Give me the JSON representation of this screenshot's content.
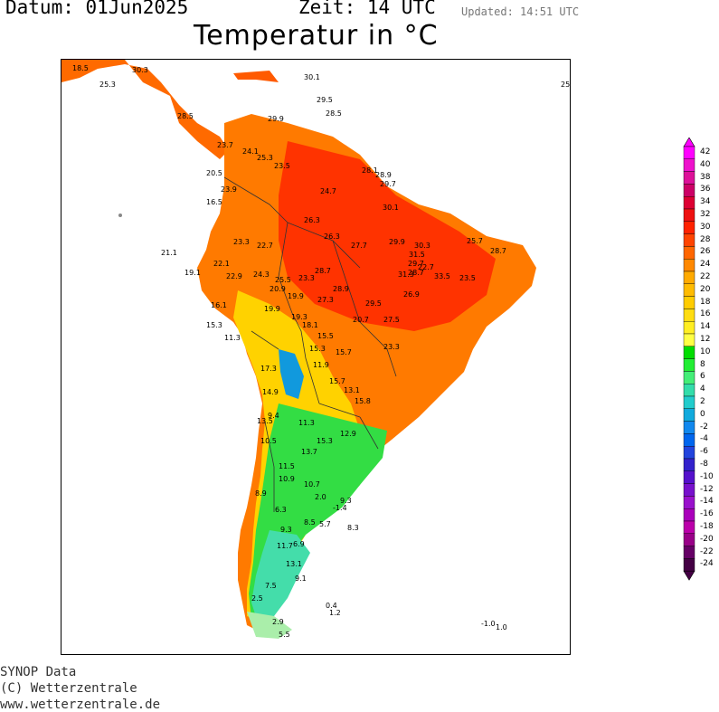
{
  "header": {
    "datum": "Datum: 01Jun2025",
    "zeit": "Zeit: 14 UTC",
    "updated": "Updated: 14:51 UTC",
    "title": "Temperatur in °C"
  },
  "legend": {
    "labels": [
      "42",
      "40",
      "38",
      "36",
      "34",
      "32",
      "30",
      "28",
      "26",
      "24",
      "22",
      "20",
      "18",
      "16",
      "14",
      "12",
      "10",
      "8",
      "6",
      "4",
      "2",
      "0",
      "-2",
      "-4",
      "-6",
      "-8",
      "-10",
      "-12",
      "-14",
      "-16",
      "-18",
      "-20",
      "-22",
      "-24"
    ],
    "colors": [
      "#ff00ff",
      "#ee11cc",
      "#dd1199",
      "#cc0066",
      "#dd0033",
      "#ee1111",
      "#ff2200",
      "#ff4400",
      "#ff6600",
      "#ff8800",
      "#ffaa00",
      "#ffbb00",
      "#ffcc00",
      "#ffdd11",
      "#ffee22",
      "#ffff44",
      "#00dd00",
      "#22ee33",
      "#44ee77",
      "#33ddaa",
      "#22cccc",
      "#11aadd",
      "#1188ee",
      "#0066ee",
      "#2244dd",
      "#3322cc",
      "#5511cc",
      "#7711cc",
      "#9911cc",
      "#aa00bb",
      "#bb00aa",
      "#990088",
      "#660066",
      "#440044"
    ]
  },
  "credits": {
    "line1": "SYNOP Data",
    "line2": "(C) Wetterzentrale",
    "line3": "www.wetterzentrale.de"
  },
  "stations": [
    {
      "v": "18.5"
    },
    {
      "v": "30.3"
    },
    {
      "v": "25.3"
    },
    {
      "v": "30.1"
    },
    {
      "v": "25"
    },
    {
      "v": "29.5"
    },
    {
      "v": "28.5"
    },
    {
      "v": "28.5"
    },
    {
      "v": "29.9"
    },
    {
      "v": "23.7"
    },
    {
      "v": "24.1"
    },
    {
      "v": "25.3"
    },
    {
      "v": "23.5"
    },
    {
      "v": "20.5"
    },
    {
      "v": "23.9"
    },
    {
      "v": "28.1"
    },
    {
      "v": "28.9"
    },
    {
      "v": "29.7"
    },
    {
      "v": "24.7"
    },
    {
      "v": "30.1"
    },
    {
      "v": "26.3"
    },
    {
      "v": "16.5"
    },
    {
      "v": "23.3"
    },
    {
      "v": "22.7"
    },
    {
      "v": "26.3"
    },
    {
      "v": "27.7"
    },
    {
      "v": "29.9"
    },
    {
      "v": "30.3"
    },
    {
      "v": "31.5"
    },
    {
      "v": "29.7"
    },
    {
      "v": "28.7"
    },
    {
      "v": "25.7"
    },
    {
      "v": "28.7"
    },
    {
      "v": "21.1"
    },
    {
      "v": "19.1"
    },
    {
      "v": "22.1"
    },
    {
      "v": "22.9"
    },
    {
      "v": "24.3"
    },
    {
      "v": "25.5"
    },
    {
      "v": "28.7"
    },
    {
      "v": "23.3"
    },
    {
      "v": "20.9"
    },
    {
      "v": "19.9"
    },
    {
      "v": "31.3"
    },
    {
      "v": "33.5"
    },
    {
      "v": "28.9"
    },
    {
      "v": "26.9"
    },
    {
      "v": "27.3"
    },
    {
      "v": "16.1"
    },
    {
      "v": "19.9"
    },
    {
      "v": "15.3"
    },
    {
      "v": "18.1"
    },
    {
      "v": "19.3"
    },
    {
      "v": "29.5"
    },
    {
      "v": "20.7"
    },
    {
      "v": "27.5"
    },
    {
      "v": "11.3"
    },
    {
      "v": "15.5"
    },
    {
      "v": "15.3"
    },
    {
      "v": "15.7"
    },
    {
      "v": "23.3"
    },
    {
      "v": "17.3"
    },
    {
      "v": "11.9"
    },
    {
      "v": "14.9"
    },
    {
      "v": "15.7"
    },
    {
      "v": "13.1"
    },
    {
      "v": "15.8"
    },
    {
      "v": "9.4"
    },
    {
      "v": "13.5"
    },
    {
      "v": "11.3"
    },
    {
      "v": "10.5"
    },
    {
      "v": "15.3"
    },
    {
      "v": "12.9"
    },
    {
      "v": "13.7"
    },
    {
      "v": "11.5"
    },
    {
      "v": "10.9"
    },
    {
      "v": "8.9"
    },
    {
      "v": "10.7"
    },
    {
      "v": "6.3"
    },
    {
      "v": "2.0"
    },
    {
      "v": "-1.4"
    },
    {
      "v": "9.3"
    },
    {
      "v": "8.5"
    },
    {
      "v": "5.7"
    },
    {
      "v": "8.3"
    },
    {
      "v": "9.3"
    },
    {
      "v": "6.9"
    },
    {
      "v": "11.7"
    },
    {
      "v": "13.1"
    },
    {
      "v": "9.1"
    },
    {
      "v": "7.5"
    },
    {
      "v": "2.5"
    },
    {
      "v": "0.4"
    },
    {
      "v": "1.2"
    },
    {
      "v": "2.9"
    },
    {
      "v": "5.5"
    },
    {
      "v": "-1.0"
    },
    {
      "v": "1.0"
    },
    {
      "v": "23.5"
    },
    {
      "v": "22.7"
    }
  ]
}
